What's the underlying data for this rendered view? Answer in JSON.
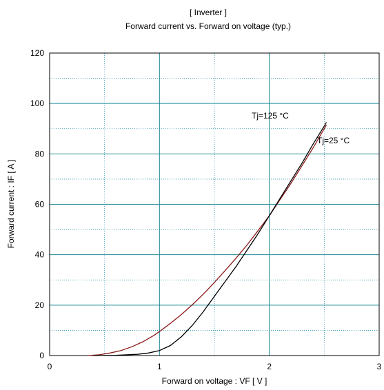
{
  "chart_data": {
    "type": "line",
    "title": "[ Inverter ]",
    "subtitle": "Forward current  vs.  Forward on voltage  (typ.)",
    "xlabel": "Forward on voltage  :  VF  [ V ]",
    "ylabel": "Forward current  :  IF  [ A ]",
    "xlim": [
      0,
      3
    ],
    "ylim": [
      0,
      120
    ],
    "x_ticks": [
      "0",
      "1",
      "2",
      "3"
    ],
    "y_ticks": [
      "0",
      "20",
      "40",
      "60",
      "80",
      "100",
      "120"
    ],
    "grid": true,
    "series": [
      {
        "name": "Tj=125 °C",
        "color": "#8b1a1a",
        "x": [
          0.35,
          0.45,
          0.55,
          0.65,
          0.75,
          0.85,
          0.95,
          1.0,
          1.1,
          1.2,
          1.3,
          1.4,
          1.5,
          1.6,
          1.7,
          1.8,
          1.9,
          2.0,
          2.1,
          2.2,
          2.3,
          2.4,
          2.5,
          2.52
        ],
        "y": [
          0,
          0.3,
          1.0,
          2.0,
          3.5,
          5.5,
          8.0,
          9.5,
          12.8,
          16.3,
          20.2,
          24.4,
          29.0,
          33.8,
          38.8,
          44.0,
          49.7,
          55.5,
          62.0,
          68.5,
          75.5,
          82.5,
          90.0,
          91.5
        ]
      },
      {
        "name": "Tj=25 °C",
        "color": "#000000",
        "x": [
          0.4,
          0.6,
          0.8,
          0.9,
          1.0,
          1.1,
          1.2,
          1.3,
          1.4,
          1.5,
          1.6,
          1.7,
          1.8,
          1.9,
          2.0,
          2.1,
          2.2,
          2.3,
          2.4,
          2.5,
          2.52
        ],
        "y": [
          0,
          0.1,
          0.5,
          1.0,
          2.0,
          4.0,
          7.5,
          12.0,
          17.5,
          23.5,
          29.5,
          35.5,
          42.0,
          48.5,
          55.5,
          62.5,
          69.5,
          76.5,
          84.0,
          91.0,
          92.5
        ]
      }
    ],
    "annotations": [
      {
        "text": "Tj=125 °C",
        "series": 0
      },
      {
        "text": "Tj=25 °C",
        "series": 1
      }
    ]
  }
}
